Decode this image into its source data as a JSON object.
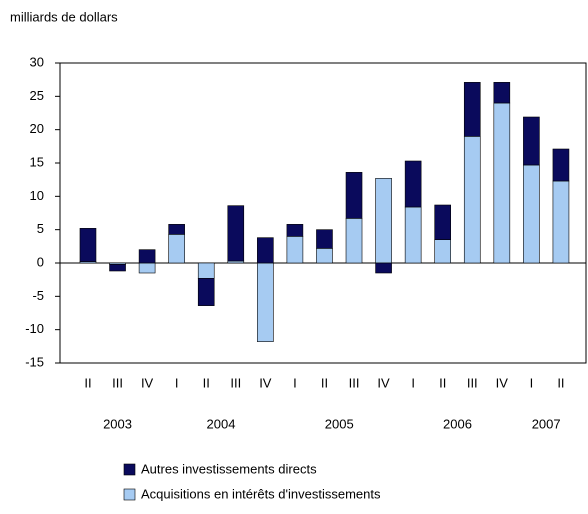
{
  "chart_data": {
    "type": "bar",
    "stacked": true,
    "y_label": "milliards de dollars",
    "groups": [
      {
        "year": "2003",
        "quarters": [
          "II",
          "III",
          "IV"
        ]
      },
      {
        "year": "2004",
        "quarters": [
          "I",
          "II",
          "III",
          "IV"
        ]
      },
      {
        "year": "2005",
        "quarters": [
          "I",
          "II",
          "III",
          "IV"
        ]
      },
      {
        "year": "2006",
        "quarters": [
          "I",
          "II",
          "III",
          "IV"
        ]
      },
      {
        "year": "2007",
        "quarters": [
          "I",
          "II"
        ]
      }
    ],
    "series": [
      {
        "name": "Acquisitions en intérêts d'investissements",
        "color": "#a6cbf2",
        "values": [
          0.2,
          -0.2,
          -1.5,
          4.3,
          -2.3,
          0.3,
          -11.8,
          4,
          2.2,
          6.7,
          12.7,
          8.4,
          3.5,
          19,
          24,
          14.7,
          12.3
        ]
      },
      {
        "name": "Autres investissements directs",
        "color": "#0a0a5c",
        "values": [
          5,
          -1,
          2,
          1.5,
          -4.1,
          8.3,
          3.8,
          1.8,
          2.8,
          6.9,
          -1.5,
          6.9,
          5.2,
          8.1,
          3.1,
          7.2,
          4.8
        ]
      }
    ],
    "ylim": [
      -15,
      30
    ],
    "yticks": [
      -15,
      -10,
      -5,
      0,
      5,
      10,
      15,
      20,
      25,
      30
    ]
  }
}
